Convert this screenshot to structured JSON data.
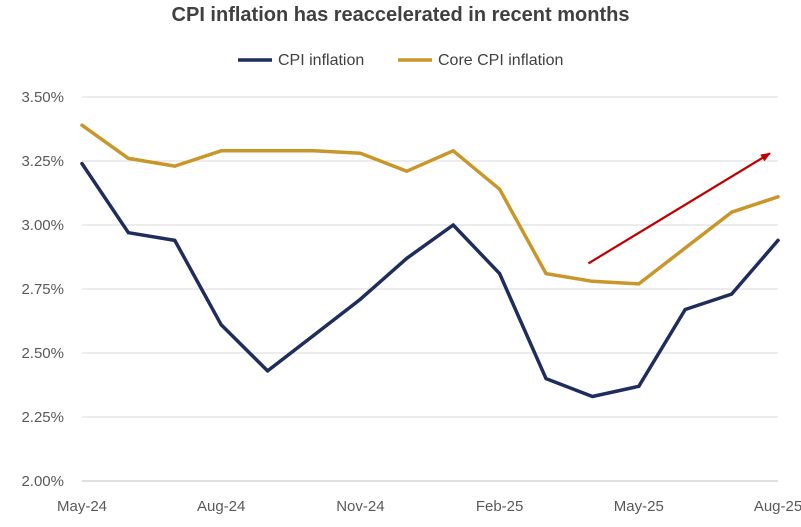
{
  "chart_data": {
    "type": "line",
    "title": "CPI inflation has reaccelerated in recent months",
    "categories": [
      "May-24",
      "Jun-24",
      "Jul-24",
      "Aug-24",
      "Sep-24",
      "Oct-24",
      "Nov-24",
      "Dec-24",
      "Jan-25",
      "Feb-25",
      "Mar-25",
      "Apr-25",
      "May-25",
      "Jun-25",
      "Jul-25",
      "Aug-25"
    ],
    "x_tick_labels": [
      "May-24",
      "Aug-24",
      "Nov-24",
      "Feb-25",
      "May-25",
      "Aug-25"
    ],
    "y_tick_labels": [
      "2.00%",
      "2.25%",
      "2.50%",
      "2.75%",
      "3.00%",
      "3.25%",
      "3.50%"
    ],
    "y_ticks": [
      2.0,
      2.25,
      2.5,
      2.75,
      3.0,
      3.25,
      3.5
    ],
    "ylim": [
      2.0,
      3.5
    ],
    "xlabel": "",
    "ylabel": "",
    "grid": true,
    "legend_position": "top-center",
    "series": [
      {
        "name": "CPI inflation",
        "color": "#1f2d5c",
        "values": [
          3.24,
          2.97,
          2.94,
          2.61,
          2.43,
          2.57,
          2.71,
          2.87,
          3.0,
          2.81,
          2.4,
          2.33,
          2.37,
          2.67,
          2.73,
          2.94
        ]
      },
      {
        "name": "Core CPI inflation",
        "color": "#c9962a",
        "values": [
          3.39,
          3.26,
          3.23,
          3.29,
          3.29,
          3.29,
          3.28,
          3.21,
          3.29,
          3.14,
          2.81,
          2.78,
          2.77,
          2.91,
          3.05,
          3.11
        ]
      }
    ],
    "annotations": [
      {
        "type": "arrow",
        "color": "#c00000",
        "from": {
          "x": "Apr-25",
          "y": 2.85
        },
        "to": {
          "x": "Aug-25",
          "y": 3.28
        }
      }
    ]
  }
}
